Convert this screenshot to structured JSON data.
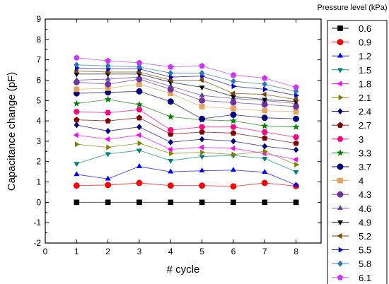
{
  "chart_data": {
    "type": "line",
    "xlabel": "# cycle",
    "ylabel": "Capacitance change (pF)",
    "xlim": [
      0,
      8.8
    ],
    "ylim": [
      -2,
      9
    ],
    "xticks": [
      0,
      1,
      2,
      3,
      4,
      5,
      6,
      7,
      8
    ],
    "yticks": [
      -2,
      -1,
      0,
      1,
      2,
      3,
      4,
      5,
      6,
      7,
      8,
      9
    ],
    "x": [
      1,
      2,
      3,
      4,
      5,
      6,
      7,
      8
    ],
    "grid": false,
    "legend_title": "Pressure level (kPa)",
    "legend_position": "right",
    "series": [
      {
        "name": "0.6",
        "marker": "square",
        "color": "#000000",
        "values": [
          0,
          0,
          0,
          0,
          0,
          0,
          0,
          0
        ]
      },
      {
        "name": "0.9",
        "marker": "circle",
        "color": "#ff0000",
        "values": [
          0.82,
          0.85,
          0.95,
          0.82,
          0.82,
          0.78,
          0.95,
          0.8
        ]
      },
      {
        "name": "1.2",
        "marker": "triangle-up",
        "color": "#0000ff",
        "values": [
          1.37,
          1.15,
          1.76,
          1.5,
          1.55,
          1.58,
          1.48,
          0.85
        ]
      },
      {
        "name": "1.5",
        "marker": "triangle-down",
        "color": "#008080",
        "values": [
          1.9,
          2.38,
          2.55,
          2.05,
          2.25,
          2.3,
          2.15,
          1.5
        ]
      },
      {
        "name": "1.8",
        "marker": "triangle-left",
        "color": "#ff00ff",
        "values": [
          3.3,
          3.1,
          3.3,
          2.6,
          2.7,
          2.65,
          2.4,
          2.1
        ]
      },
      {
        "name": "2.1",
        "marker": "triangle-right",
        "color": "#808000",
        "values": [
          2.85,
          2.7,
          2.9,
          2.4,
          2.45,
          2.35,
          2.5,
          1.85
        ]
      },
      {
        "name": "2.4",
        "marker": "diamond",
        "color": "#000080",
        "values": [
          3.8,
          3.5,
          3.7,
          2.95,
          3.1,
          3.0,
          2.75,
          2.58
        ]
      },
      {
        "name": "2.7",
        "marker": "pentagon",
        "color": "#800000",
        "values": [
          4.05,
          4.0,
          4.15,
          3.35,
          3.45,
          3.4,
          3.15,
          2.9
        ]
      },
      {
        "name": "3",
        "marker": "hexagon",
        "color": "#ff0080",
        "values": [
          4.45,
          4.4,
          4.55,
          3.55,
          3.7,
          3.7,
          3.45,
          3.2
        ]
      },
      {
        "name": "3.3",
        "marker": "star",
        "color": "#008000",
        "values": [
          4.85,
          5.05,
          4.8,
          4.2,
          4.05,
          4.0,
          3.75,
          3.7
        ]
      },
      {
        "name": "3.7",
        "marker": "circle",
        "color": "#000080",
        "values": [
          5.35,
          5.4,
          5.45,
          4.95,
          4.1,
          4.3,
          4.15,
          4.1
        ]
      },
      {
        "name": "4",
        "marker": "square",
        "color": "#e8a060",
        "values": [
          5.55,
          5.6,
          5.8,
          5.35,
          4.7,
          4.6,
          4.5,
          4.45
        ]
      },
      {
        "name": "4.3",
        "marker": "circle",
        "color": "#7030a0",
        "values": [
          5.9,
          5.8,
          6.05,
          5.55,
          5.0,
          4.9,
          4.8,
          4.7
        ]
      },
      {
        "name": "4.6",
        "marker": "triangle-up",
        "color": "#6040a0",
        "values": [
          6.0,
          6.05,
          6.15,
          5.7,
          5.25,
          5.1,
          5.0,
          4.85
        ]
      },
      {
        "name": "4.9",
        "marker": "triangle-down",
        "color": "#000000",
        "values": [
          6.3,
          6.3,
          6.3,
          5.9,
          5.65,
          5.2,
          5.05,
          4.95
        ]
      },
      {
        "name": "5.2",
        "marker": "triangle-left",
        "color": "#804000",
        "values": [
          6.45,
          6.4,
          6.4,
          6.0,
          6.0,
          5.35,
          5.3,
          5.05
        ]
      },
      {
        "name": "5.5",
        "marker": "triangle-right",
        "color": "#0000cc",
        "values": [
          6.6,
          6.55,
          6.55,
          6.15,
          6.2,
          5.7,
          5.55,
          5.25
        ]
      },
      {
        "name": "5.8",
        "marker": "diamond",
        "color": "#2e75b6",
        "values": [
          6.75,
          6.7,
          6.65,
          6.35,
          6.35,
          5.95,
          5.8,
          5.45
        ]
      },
      {
        "name": "6.1",
        "marker": "pentagon",
        "color": "#cc33ff",
        "values": [
          7.1,
          6.95,
          6.85,
          6.65,
          6.7,
          6.25,
          6.1,
          5.65
        ]
      }
    ]
  }
}
